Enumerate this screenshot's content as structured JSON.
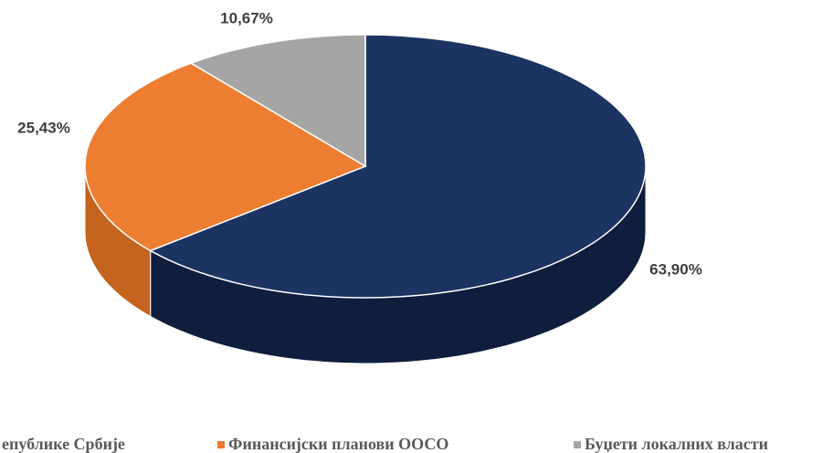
{
  "chart_data": {
    "type": "pie",
    "categories": [
      "епублике Србије",
      "Финансијски планови  ООСО",
      "Буџети локалних власти"
    ],
    "values": [
      63.9,
      25.43,
      10.67
    ],
    "value_labels": [
      "63,90%",
      "25,43%",
      "10,67%"
    ],
    "colors": [
      "#1c3461",
      "#ed7d31",
      "#a5a5a5"
    ],
    "side_colors": [
      "#0f1e3c",
      "#c4641f",
      "#858585"
    ],
    "legend": "bottom"
  }
}
